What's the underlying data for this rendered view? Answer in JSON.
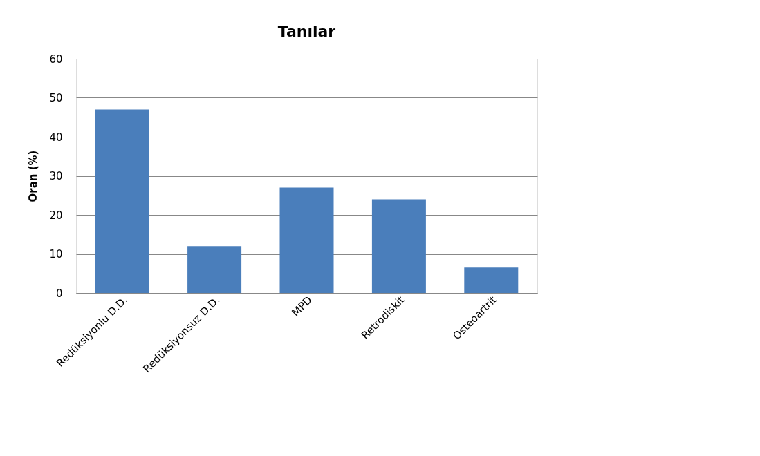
{
  "chart_data": {
    "type": "bar",
    "title": "Tanılar",
    "ylabel": "Oran (%)",
    "categories": [
      "Redüksiyonlu D.D.",
      "Redüksiyonsuz D.D.",
      "MPD",
      "Retrodiskit",
      "Osteoartrit"
    ],
    "values": [
      47,
      12,
      27,
      24,
      6.5
    ],
    "color": "#4a7ebb",
    "ylim": [
      0,
      60
    ],
    "yticks": [
      0,
      10,
      20,
      30,
      40,
      50,
      60
    ],
    "grid": "y"
  }
}
